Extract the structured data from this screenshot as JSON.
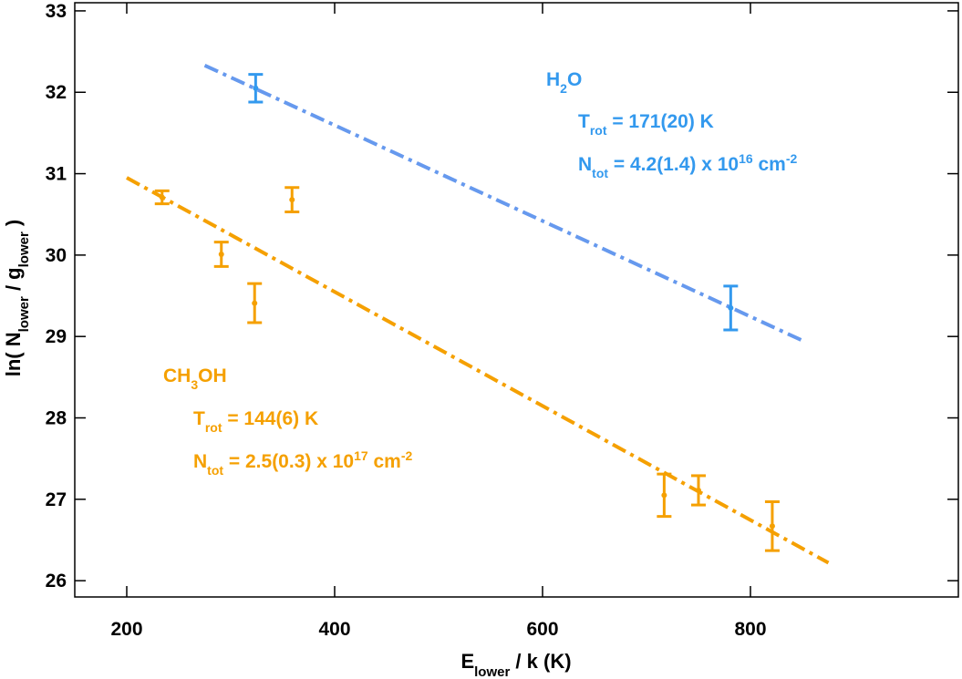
{
  "chart_data": {
    "type": "scatter",
    "xlabel": {
      "main": "E",
      "sub": "lower",
      "rest": " / k (K)"
    },
    "ylabel": {
      "pre": "ln( N",
      "sub1": "lower",
      "mid": " / g",
      "sub2": "lower",
      "post": " )"
    },
    "xlim": [
      150,
      1000
    ],
    "ylim": [
      25.8,
      33.1
    ],
    "xticks": [
      200,
      400,
      600,
      800
    ],
    "xtick_labels": [
      "200",
      "400",
      "600",
      "800"
    ],
    "yticks": [
      26,
      27,
      28,
      29,
      30,
      31,
      32,
      33
    ],
    "ytick_labels": [
      "26",
      "27",
      "28",
      "29",
      "30",
      "31",
      "32",
      "33"
    ],
    "grid": false,
    "series": [
      {
        "name": "H2O",
        "color": "#3399ee",
        "fit_color": "#6699ee",
        "points": [
          {
            "x": 324,
            "y": 32.05,
            "err": 0.17
          },
          {
            "x": 781,
            "y": 29.35,
            "err": 0.27
          }
        ],
        "fit": {
          "x": [
            275,
            850
          ],
          "y": [
            32.33,
            28.95
          ]
        }
      },
      {
        "name": "CH3OH",
        "color": "#f5a000",
        "fit_color": "#f5a000",
        "points": [
          {
            "x": 234,
            "y": 30.71,
            "err": 0.08
          },
          {
            "x": 291,
            "y": 30.01,
            "err": 0.15
          },
          {
            "x": 323,
            "y": 29.41,
            "err": 0.24
          },
          {
            "x": 359,
            "y": 30.68,
            "err": 0.15
          },
          {
            "x": 717,
            "y": 27.05,
            "err": 0.26
          },
          {
            "x": 750,
            "y": 27.11,
            "err": 0.18
          },
          {
            "x": 821,
            "y": 26.67,
            "err": 0.3
          }
        ],
        "fit": {
          "x": [
            200,
            875
          ],
          "y": [
            30.95,
            26.22
          ]
        }
      }
    ],
    "annotations": [
      {
        "color": "#3399ee",
        "lines": [
          {
            "pre": "H",
            "sub": "2",
            "post": "O",
            "sup": "",
            "tail": ""
          },
          {
            "pre": "T",
            "sub": "rot",
            "post": " = 171(20) K",
            "sup": "",
            "tail": ""
          },
          {
            "pre": "N",
            "sub": "tot",
            "post": " = 4.2(1.4) x 10",
            "sup": "16",
            "tail": " cm",
            "sup2": "-2"
          }
        ]
      },
      {
        "color": "#f5a000",
        "lines": [
          {
            "pre": "CH",
            "sub": "3",
            "post": "OH",
            "sup": "",
            "tail": ""
          },
          {
            "pre": "T",
            "sub": "rot",
            "post": " = 144(6) K",
            "sup": "",
            "tail": ""
          },
          {
            "pre": "N",
            "sub": "tot",
            "post": " = 2.5(0.3) x 10",
            "sup": "17",
            "tail": " cm",
            "sup2": "-2"
          }
        ]
      }
    ]
  }
}
